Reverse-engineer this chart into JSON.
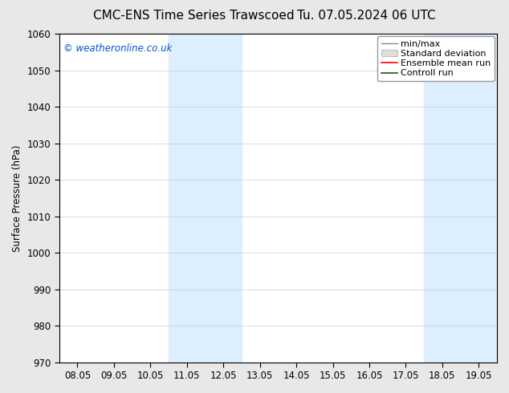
{
  "title": "CMC-ENS Time Series Trawscoed",
  "title2": "Tu. 07.05.2024 06 UTC",
  "ylabel": "Surface Pressure (hPa)",
  "ylim": [
    970,
    1060
  ],
  "yticks": [
    970,
    980,
    990,
    1000,
    1010,
    1020,
    1030,
    1040,
    1050,
    1060
  ],
  "xtick_labels": [
    "08.05",
    "09.05",
    "10.05",
    "11.05",
    "12.05",
    "13.05",
    "14.05",
    "15.05",
    "16.05",
    "17.05",
    "18.05",
    "19.05"
  ],
  "shaded_regions": [
    {
      "start": 3,
      "end": 5
    },
    {
      "start": 10,
      "end": 12
    }
  ],
  "shaded_color": "#ddeeff",
  "watermark": "© weatheronline.co.uk",
  "watermark_color": "#0055cc",
  "background_color": "#e8e8e8",
  "plot_bg_color": "#ffffff",
  "legend_items": [
    {
      "label": "min/max"
    },
    {
      "label": "Standard deviation"
    },
    {
      "label": "Ensemble mean run"
    },
    {
      "label": "Controll run"
    }
  ],
  "legend_line_colors": [
    "#888888",
    "#cccccc",
    "#ff0000",
    "#006600"
  ],
  "grid_color": "#cccccc",
  "tick_color": "#000000",
  "font_size": 8.5,
  "title_fontsize": 11
}
